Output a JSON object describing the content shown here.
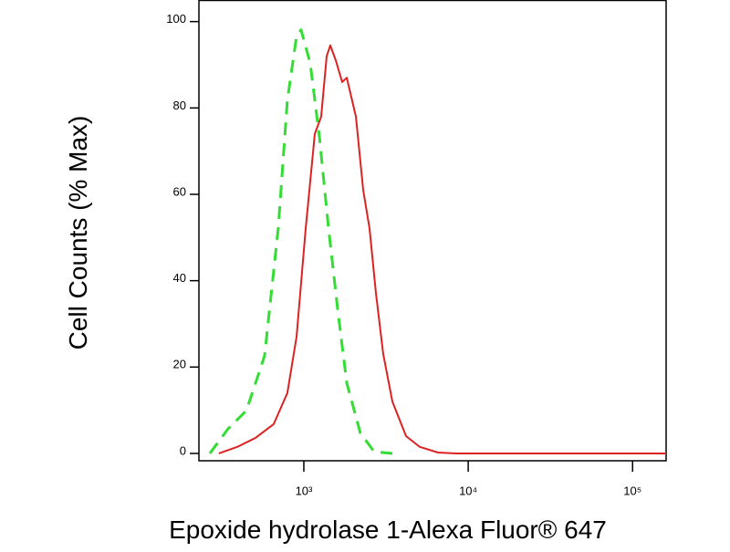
{
  "chart_data": {
    "type": "line",
    "x_label": "Epoxide hydrolase 1-Alexa Fluor® 647",
    "y_label": "Cell Counts (% Max)",
    "x_scale": "log",
    "xlim": [
      230,
      160000
    ],
    "xticks": [
      {
        "value": 1000,
        "label": "10³"
      },
      {
        "value": 10000,
        "label": "10⁴"
      },
      {
        "value": 100000,
        "label": "10⁵"
      }
    ],
    "ylim": [
      -1.7,
      105
    ],
    "yticks": [
      0,
      20,
      40,
      60,
      80,
      100
    ],
    "grid": false,
    "series": [
      {
        "color": "#33dd33",
        "dashed": true,
        "x": [
          268,
          346,
          447,
          577,
          699,
          794,
          903,
          962,
          1094,
          1243,
          1413,
          1606,
          1825,
          2208,
          2679,
          3458
        ],
        "values": [
          0,
          5.7,
          9.9,
          22.6,
          52.2,
          81.8,
          96.6,
          98.1,
          90.3,
          73.4,
          52.2,
          33.4,
          16.3,
          4.7,
          0.4,
          0
        ]
      },
      {
        "color": "#dd2222",
        "dashed": false,
        "x": [
          304,
          393,
          508,
          656,
          794,
          903,
          1026,
          1166,
          1275,
          1377,
          1449,
          1565,
          1711,
          1825,
          2074,
          2297,
          2512,
          2748,
          3041,
          3458,
          4188,
          5077,
          6561,
          8472,
          160000
        ],
        "values": [
          0,
          1.5,
          3.6,
          6.8,
          14,
          27,
          52,
          74,
          78,
          92,
          94.5,
          91,
          86,
          87,
          78,
          61,
          52,
          37,
          23,
          12,
          4,
          1.5,
          0.2,
          0,
          0
        ]
      }
    ]
  }
}
